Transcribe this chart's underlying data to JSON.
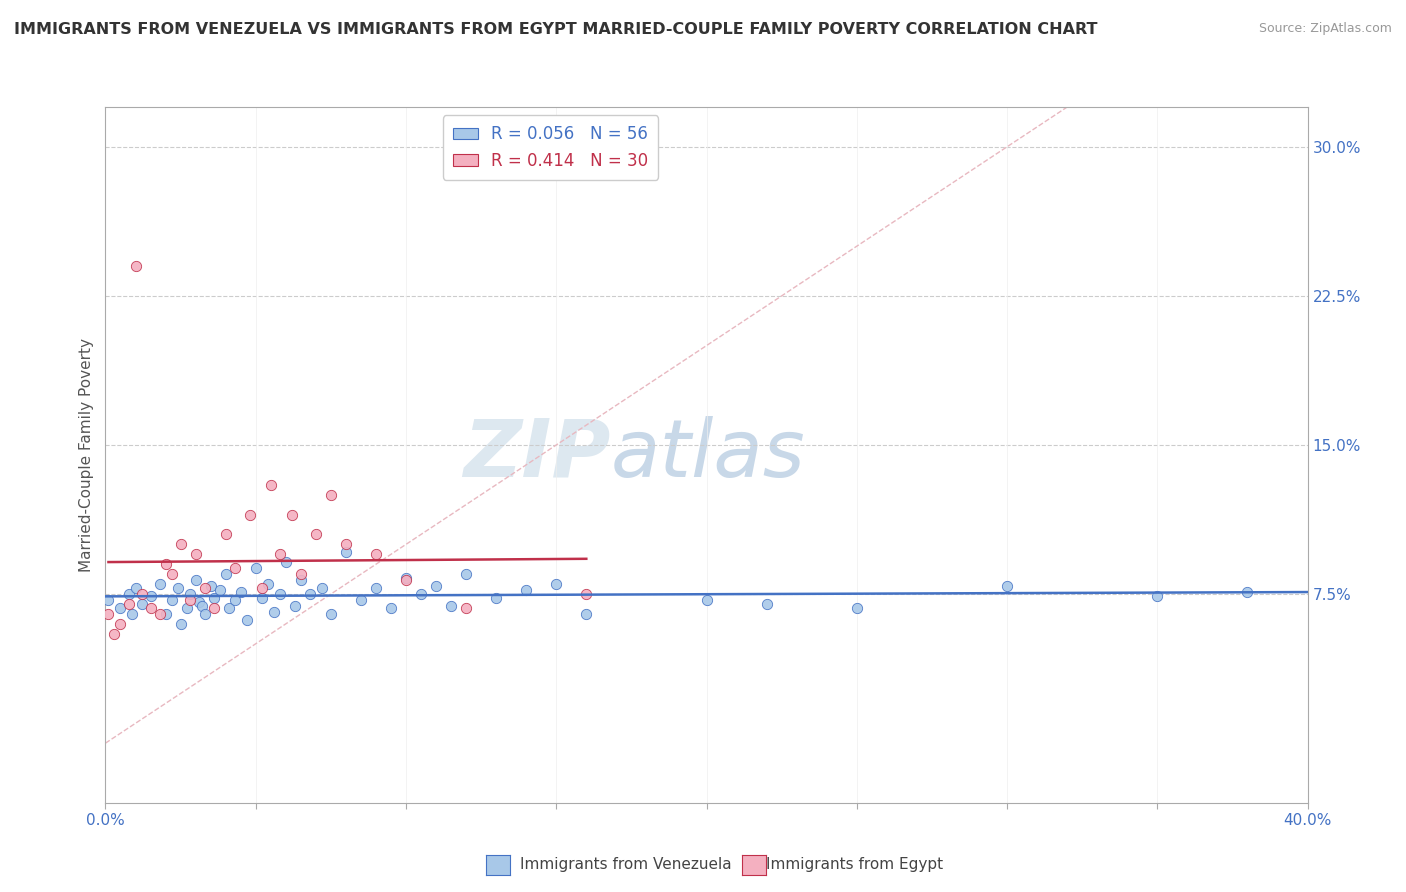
{
  "title": "IMMIGRANTS FROM VENEZUELA VS IMMIGRANTS FROM EGYPT MARRIED-COUPLE FAMILY POVERTY CORRELATION CHART",
  "source": "Source: ZipAtlas.com",
  "ylabel": "Married-Couple Family Poverty",
  "xlim": [
    0.0,
    0.4
  ],
  "ylim": [
    -0.03,
    0.32
  ],
  "ytick_right_labels": [
    "30.0%",
    "22.5%",
    "15.0%",
    "7.5%"
  ],
  "ytick_right_values": [
    0.3,
    0.225,
    0.15,
    0.075
  ],
  "venezuela_color": "#a8c8e8",
  "egypt_color": "#f4b0c0",
  "trendline_venezuela_color": "#4472c4",
  "trendline_egypt_color": "#c0304a",
  "R_venezuela": 0.056,
  "N_venezuela": 56,
  "R_egypt": 0.414,
  "N_egypt": 30,
  "legend_label_venezuela": "Immigrants from Venezuela",
  "legend_label_egypt": "Immigrants from Egypt",
  "venezuela_x": [
    0.001,
    0.005,
    0.008,
    0.009,
    0.01,
    0.012,
    0.015,
    0.018,
    0.02,
    0.022,
    0.024,
    0.025,
    0.027,
    0.028,
    0.03,
    0.031,
    0.032,
    0.033,
    0.035,
    0.036,
    0.038,
    0.04,
    0.041,
    0.043,
    0.045,
    0.047,
    0.05,
    0.052,
    0.054,
    0.056,
    0.058,
    0.06,
    0.063,
    0.065,
    0.068,
    0.072,
    0.075,
    0.08,
    0.085,
    0.09,
    0.095,
    0.1,
    0.105,
    0.11,
    0.115,
    0.12,
    0.13,
    0.14,
    0.15,
    0.16,
    0.2,
    0.22,
    0.25,
    0.3,
    0.35,
    0.38
  ],
  "venezuela_y": [
    0.072,
    0.068,
    0.075,
    0.065,
    0.078,
    0.07,
    0.074,
    0.08,
    0.065,
    0.072,
    0.078,
    0.06,
    0.068,
    0.075,
    0.082,
    0.071,
    0.069,
    0.065,
    0.079,
    0.073,
    0.077,
    0.085,
    0.068,
    0.072,
    0.076,
    0.062,
    0.088,
    0.073,
    0.08,
    0.066,
    0.075,
    0.091,
    0.069,
    0.082,
    0.075,
    0.078,
    0.065,
    0.096,
    0.072,
    0.078,
    0.068,
    0.083,
    0.075,
    0.079,
    0.069,
    0.085,
    0.073,
    0.077,
    0.08,
    0.065,
    0.072,
    0.07,
    0.068,
    0.079,
    0.074,
    0.076
  ],
  "egypt_x": [
    0.001,
    0.003,
    0.005,
    0.008,
    0.01,
    0.012,
    0.015,
    0.018,
    0.02,
    0.022,
    0.025,
    0.028,
    0.03,
    0.033,
    0.036,
    0.04,
    0.043,
    0.048,
    0.052,
    0.055,
    0.058,
    0.062,
    0.065,
    0.07,
    0.075,
    0.08,
    0.09,
    0.1,
    0.12,
    0.16
  ],
  "egypt_y": [
    0.065,
    0.055,
    0.06,
    0.07,
    0.24,
    0.075,
    0.068,
    0.065,
    0.09,
    0.085,
    0.1,
    0.072,
    0.095,
    0.078,
    0.068,
    0.105,
    0.088,
    0.115,
    0.078,
    0.13,
    0.095,
    0.115,
    0.085,
    0.105,
    0.125,
    0.1,
    0.095,
    0.082,
    0.068,
    0.075
  ]
}
